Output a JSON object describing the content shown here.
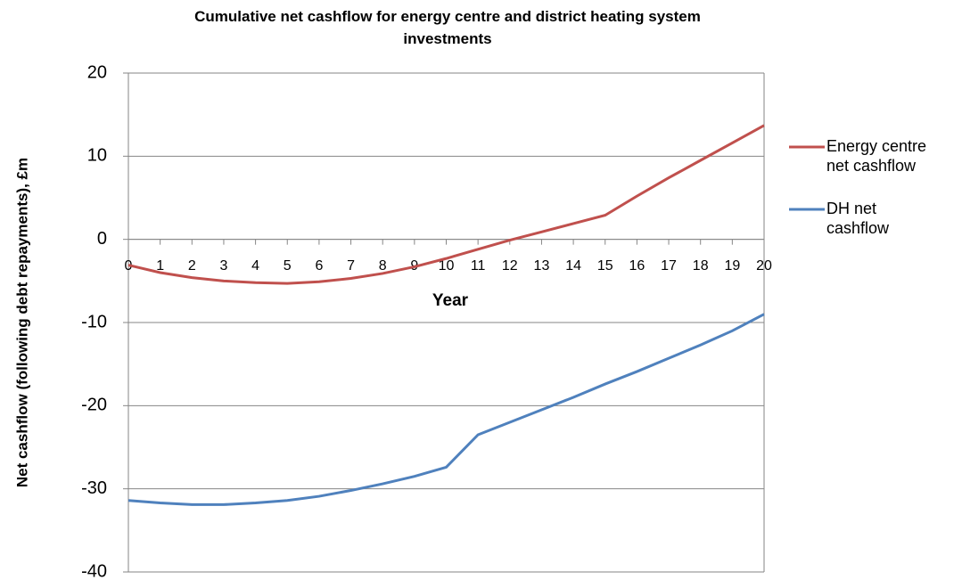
{
  "chart_data": {
    "type": "line",
    "title": "Cumulative net cashflow for energy centre and district heating system investments",
    "x_label": "Year",
    "y_label": "Net cashflow (following debt repayments), £m",
    "x": [
      0,
      1,
      2,
      3,
      4,
      5,
      6,
      7,
      8,
      9,
      10,
      11,
      12,
      13,
      14,
      15,
      16,
      17,
      18,
      19,
      20
    ],
    "xlim": [
      0,
      20
    ],
    "xticks": [
      0,
      1,
      2,
      3,
      4,
      5,
      6,
      7,
      8,
      9,
      10,
      11,
      12,
      13,
      14,
      15,
      16,
      17,
      18,
      19,
      20
    ],
    "ylim": [
      -40,
      20
    ],
    "yticks": [
      -40,
      -30,
      -20,
      -10,
      0,
      10,
      20
    ],
    "grid": true,
    "legend": "right",
    "series": [
      {
        "name": "Energy centre net cashflow",
        "color": "#c0504d",
        "values": [
          -3.1,
          -4.0,
          -4.6,
          -5.0,
          -5.2,
          -5.3,
          -5.1,
          -4.7,
          -4.1,
          -3.3,
          -2.3,
          -1.2,
          -0.1,
          0.9,
          1.9,
          2.9,
          5.2,
          7.4,
          9.5,
          11.6,
          13.7
        ]
      },
      {
        "name": "DH net cashflow",
        "color": "#4f81bd",
        "values": [
          -31.4,
          -31.7,
          -31.9,
          -31.9,
          -31.7,
          -31.4,
          -30.9,
          -30.2,
          -29.4,
          -28.5,
          -27.4,
          -23.5,
          -22.0,
          -20.5,
          -19.0,
          -17.4,
          -15.9,
          -14.3,
          -12.7,
          -11.0,
          -9.0
        ]
      }
    ]
  }
}
